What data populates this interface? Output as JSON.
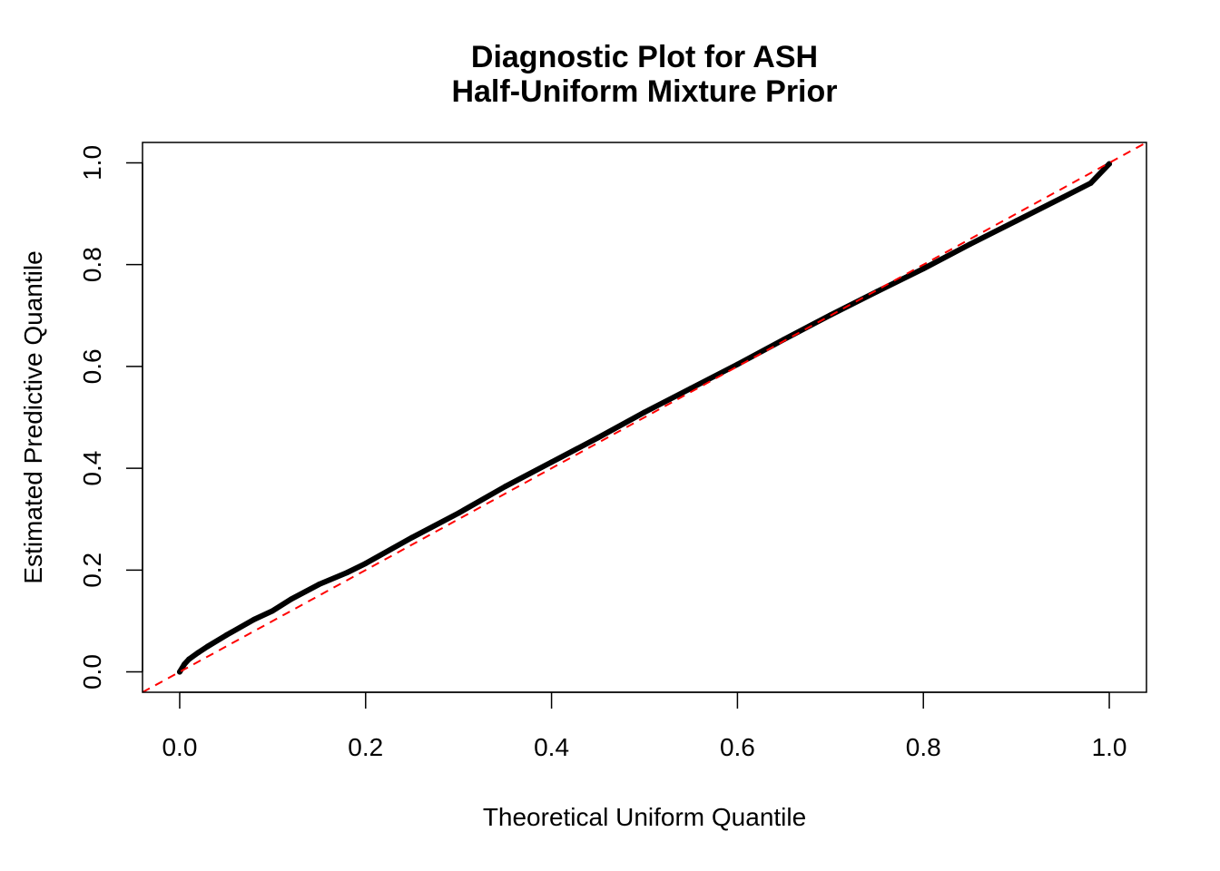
{
  "chart_data": {
    "type": "line",
    "title": "Diagnostic Plot for ASH",
    "subtitle": "Half-Uniform Mixture Prior",
    "xlabel": "Theoretical Uniform Quantile",
    "ylabel": "Estimated Predictive Quantile",
    "xlim": [
      -0.04,
      1.04
    ],
    "ylim": [
      -0.04,
      1.04
    ],
    "x_ticks": [
      0.0,
      0.2,
      0.4,
      0.6,
      0.8,
      1.0
    ],
    "y_ticks": [
      0.0,
      0.2,
      0.4,
      0.6,
      0.8,
      1.0
    ],
    "x_tick_labels": [
      "0.0",
      "0.2",
      "0.4",
      "0.6",
      "0.8",
      "1.0"
    ],
    "y_tick_labels": [
      "0.0",
      "0.2",
      "0.4",
      "0.6",
      "0.8",
      "1.0"
    ],
    "grid": false,
    "legend": "none",
    "series": [
      {
        "style": "points",
        "color": "#000000",
        "x": [
          0.0,
          0.005,
          0.01,
          0.02,
          0.03,
          0.05,
          0.08,
          0.1,
          0.12,
          0.15,
          0.18,
          0.2,
          0.25,
          0.3,
          0.35,
          0.4,
          0.45,
          0.5,
          0.55,
          0.6,
          0.65,
          0.7,
          0.75,
          0.8,
          0.85,
          0.9,
          0.95,
          0.98,
          1.0
        ],
        "y": [
          0.0,
          0.015,
          0.025,
          0.038,
          0.05,
          0.072,
          0.103,
          0.12,
          0.143,
          0.172,
          0.195,
          0.213,
          0.264,
          0.312,
          0.364,
          0.412,
          0.46,
          0.51,
          0.557,
          0.604,
          0.653,
          0.701,
          0.747,
          0.792,
          0.84,
          0.886,
          0.932,
          0.96,
          0.998
        ]
      },
      {
        "style": "dashed",
        "color": "#ff0000",
        "x": [
          -0.04,
          1.04
        ],
        "y": [
          -0.04,
          1.04
        ]
      }
    ]
  }
}
